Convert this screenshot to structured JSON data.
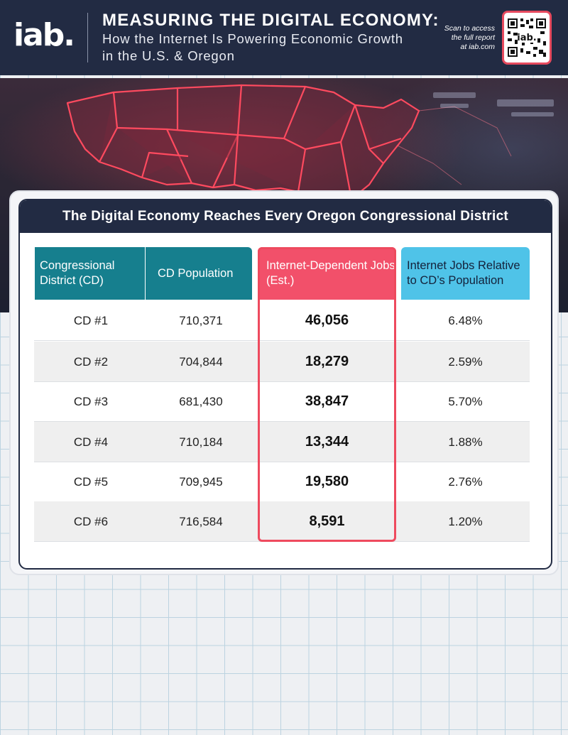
{
  "header": {
    "logo": "iab.",
    "title": "MEASURING THE DIGITAL ECONOMY:",
    "subtitle_line1": "How the Internet Is Powering Economic Growth",
    "subtitle_line2": "in the U.S. & Oregon",
    "scan_line1": "Scan to access",
    "scan_line2": "the full report",
    "scan_line3": "at iab.com",
    "qr_label": "iab."
  },
  "table": {
    "heading": "The Digital Economy Reaches Every Oregon Congressional District",
    "columns": [
      "Congressional District (CD)",
      "CD Population",
      "Internet-Dependent Jobs (Est.)",
      "Internet Jobs Relative to CD’s Population"
    ],
    "rows": [
      {
        "district": "CD #1",
        "population": "710,371",
        "jobs": "46,056",
        "share": "6.48%"
      },
      {
        "district": "CD #2",
        "population": "704,844",
        "jobs": "18,279",
        "share": "2.59%"
      },
      {
        "district": "CD #3",
        "population": "681,430",
        "jobs": "38,847",
        "share": "5.70%"
      },
      {
        "district": "CD #4",
        "population": "710,184",
        "jobs": "13,344",
        "share": "1.88%"
      },
      {
        "district": "CD #5",
        "population": "709,945",
        "jobs": "19,580",
        "share": "2.76%"
      },
      {
        "district": "CD #6",
        "population": "716,584",
        "jobs": "8,591",
        "share": "1.20%"
      }
    ]
  },
  "colors": {
    "navy": "#222b43",
    "teal": "#167f8e",
    "coral": "#f2506a",
    "sky": "#4fc3e8"
  },
  "icons": [
    "qr-code-icon",
    "us-map-graphic"
  ]
}
